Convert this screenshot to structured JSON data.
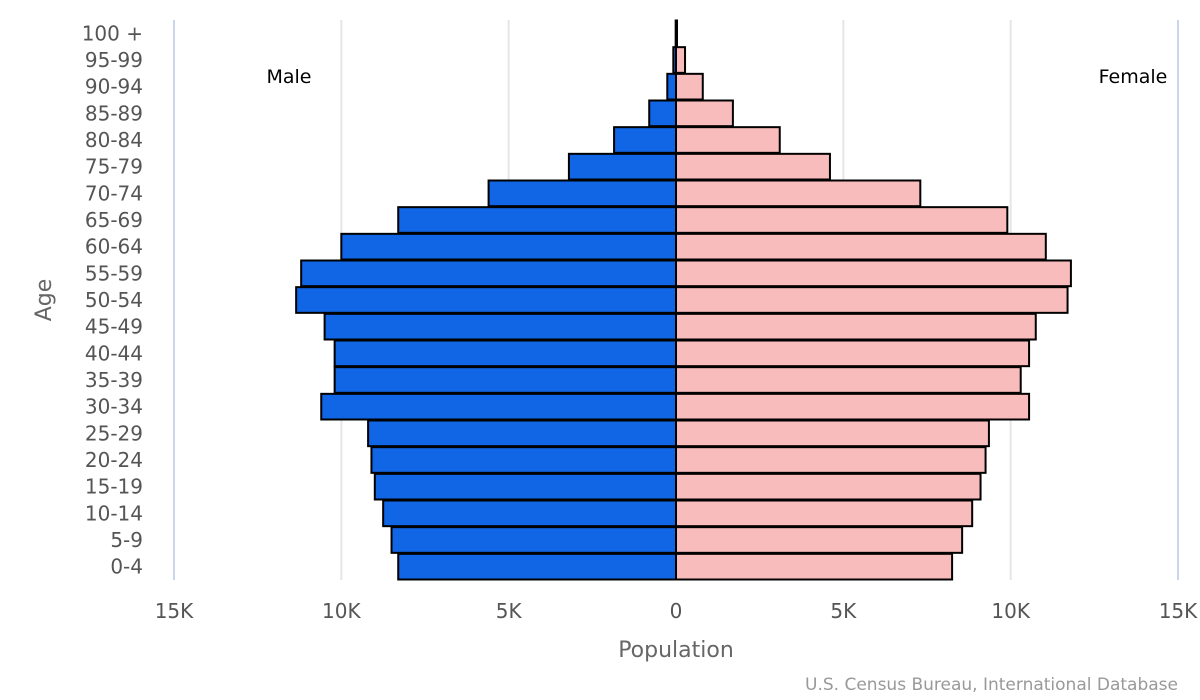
{
  "chart_data": {
    "type": "bar",
    "orientation": "horizontal",
    "subtype": "population-pyramid",
    "xlabel": "Population",
    "ylabel": "Age",
    "xlim": [
      -15000,
      15000
    ],
    "x_ticks": [
      -15000,
      -10000,
      -5000,
      0,
      5000,
      10000,
      15000
    ],
    "x_tick_labels": [
      "15K",
      "10K",
      "5K",
      "0",
      "5K",
      "10K",
      "15K"
    ],
    "categories": [
      "100 +",
      "95-99",
      "90-94",
      "85-89",
      "80-84",
      "75-79",
      "70-74",
      "65-69",
      "60-64",
      "55-59",
      "50-54",
      "45-49",
      "40-44",
      "35-39",
      "30-34",
      "25-29",
      "20-24",
      "15-19",
      "10-14",
      "5-9",
      "0-4"
    ],
    "series": [
      {
        "name": "Male",
        "color": "#1166e6",
        "values": [
          10,
          80,
          260,
          800,
          1850,
          3200,
          5600,
          8300,
          10000,
          11200,
          11350,
          10500,
          10200,
          10200,
          10600,
          9200,
          9100,
          9000,
          8750,
          8500,
          8300
        ]
      },
      {
        "name": "Female",
        "color": "#f9bcbc",
        "values": [
          30,
          270,
          800,
          1700,
          3100,
          4600,
          7300,
          9900,
          11050,
          11800,
          11700,
          10750,
          10550,
          10300,
          10550,
          9350,
          9250,
          9100,
          8850,
          8550,
          8250
        ]
      }
    ],
    "male_label": "Male",
    "female_label": "Female",
    "credit": "U.S. Census Bureau, International Database",
    "grid": true,
    "colors": {
      "grid": "#e6e6e6",
      "axis_line": "#ccd6eb",
      "bar_stroke": "#000000"
    }
  }
}
